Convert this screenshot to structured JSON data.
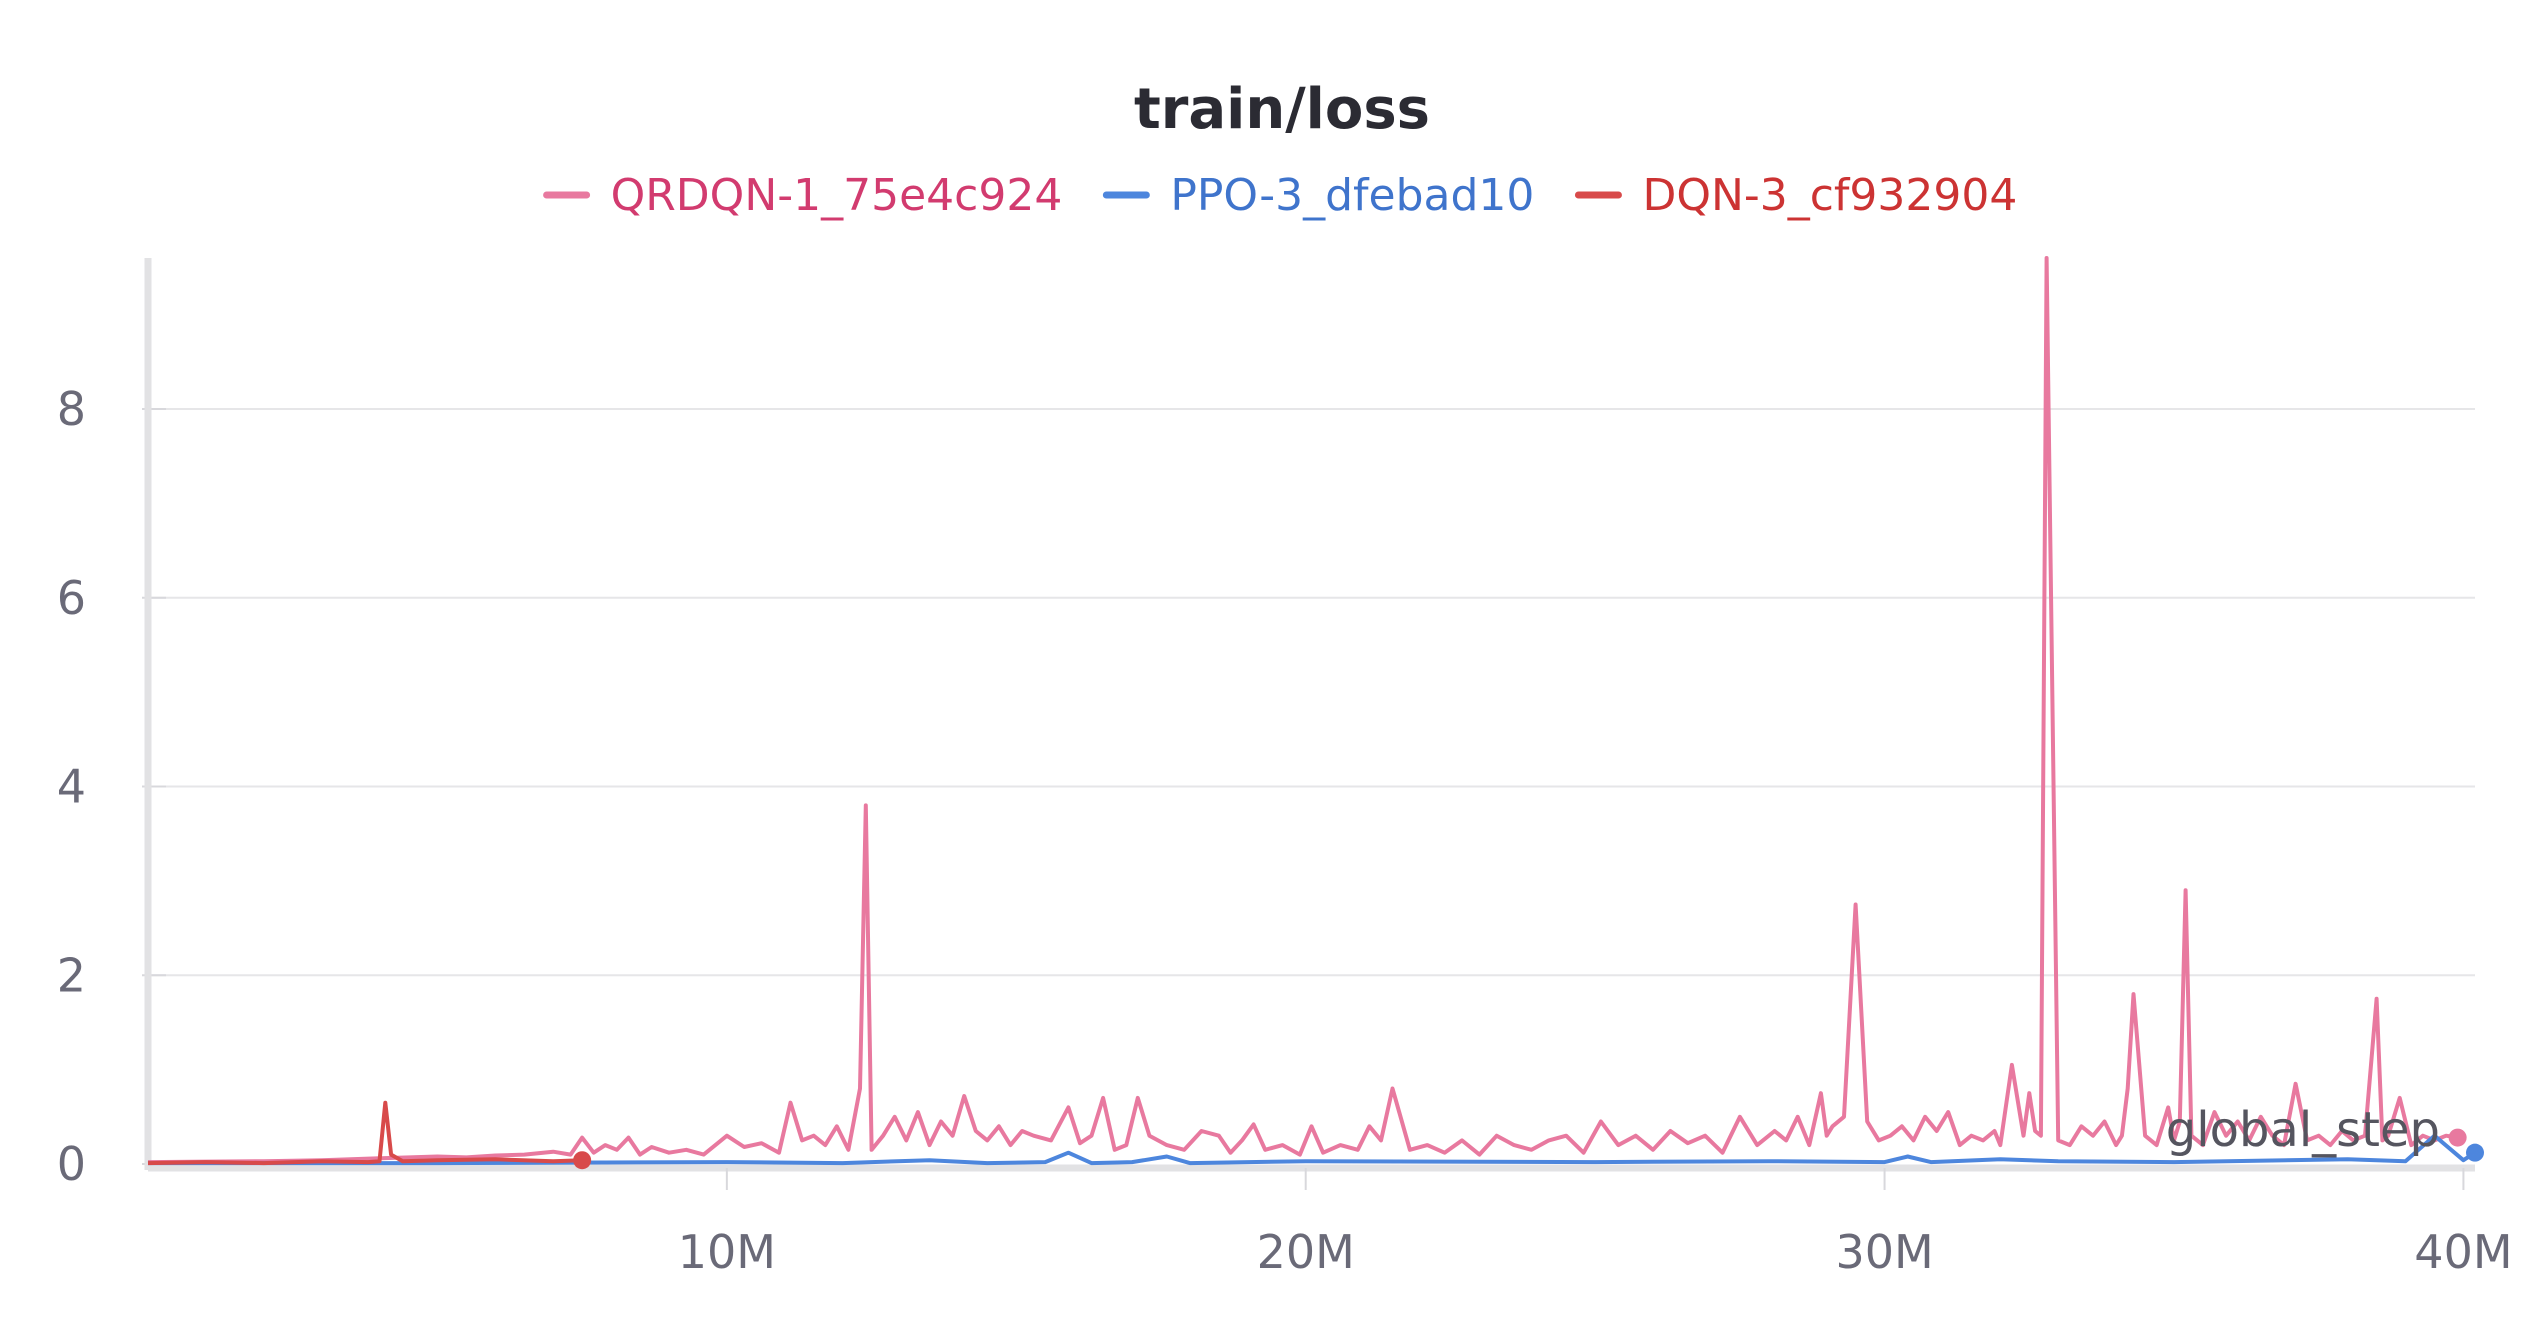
{
  "chart_data": {
    "type": "line",
    "title": "train/loss",
    "xlabel": "global_step",
    "ylabel": "",
    "xlim": [
      0,
      40200000
    ],
    "ylim": [
      0,
      9.6
    ],
    "x_ticks": [
      {
        "value": 10000000,
        "label": "10M"
      },
      {
        "value": 20000000,
        "label": "20M"
      },
      {
        "value": 30000000,
        "label": "30M"
      },
      {
        "value": 40000000,
        "label": "40M"
      }
    ],
    "y_ticks": [
      {
        "value": 0,
        "label": "0"
      },
      {
        "value": 2,
        "label": "2"
      },
      {
        "value": 4,
        "label": "4"
      },
      {
        "value": 6,
        "label": "6"
      },
      {
        "value": 8,
        "label": "8"
      }
    ],
    "grid": true,
    "legend_position": "top-center",
    "series": [
      {
        "name": "QRDQN-1_75e4c924",
        "color": "#e8799f",
        "label_color": "#d23b6f",
        "x": [
          0,
          2000000,
          3000000,
          4000000,
          5000000,
          5500000,
          6000000,
          6500000,
          7000000,
          7300000,
          7500000,
          7700000,
          7900000,
          8100000,
          8300000,
          8500000,
          8700000,
          9000000,
          9300000,
          9600000,
          10000000,
          10300000,
          10600000,
          10900000,
          11100000,
          11300000,
          11500000,
          11700000,
          11900000,
          12100000,
          12300000,
          12400000,
          12500000,
          12700000,
          12900000,
          13100000,
          13300000,
          13500000,
          13700000,
          13900000,
          14100000,
          14300000,
          14500000,
          14700000,
          14900000,
          15100000,
          15300000,
          15600000,
          15900000,
          16100000,
          16300000,
          16500000,
          16700000,
          16900000,
          17100000,
          17300000,
          17600000,
          17900000,
          18200000,
          18500000,
          18700000,
          18900000,
          19100000,
          19300000,
          19600000,
          19900000,
          20100000,
          20300000,
          20600000,
          20900000,
          21100000,
          21300000,
          21500000,
          21800000,
          22100000,
          22400000,
          22700000,
          23000000,
          23300000,
          23600000,
          23900000,
          24200000,
          24500000,
          24800000,
          25100000,
          25400000,
          25700000,
          26000000,
          26300000,
          26600000,
          26900000,
          27200000,
          27500000,
          27800000,
          28100000,
          28300000,
          28500000,
          28700000,
          28900000,
          29000000,
          29100000,
          29300000,
          29500000,
          29700000,
          29900000,
          30100000,
          30300000,
          30500000,
          30700000,
          30900000,
          31100000,
          31300000,
          31500000,
          31700000,
          31900000,
          32000000,
          32200000,
          32400000,
          32500000,
          32600000,
          32700000,
          32800000,
          33000000,
          33200000,
          33400000,
          33600000,
          33800000,
          34000000,
          34100000,
          34200000,
          34300000,
          34500000,
          34700000,
          34900000,
          35000000,
          35100000,
          35200000,
          35300000,
          35500000,
          35700000,
          35900000,
          36100000,
          36300000,
          36500000,
          36700000,
          36900000,
          37100000,
          37300000,
          37500000,
          37700000,
          37900000,
          38100000,
          38300000,
          38500000,
          38600000,
          38700000,
          38900000,
          39100000,
          39300000,
          39500000,
          39700000,
          39900000
        ],
        "values": [
          0.02,
          0.03,
          0.04,
          0.06,
          0.08,
          0.07,
          0.09,
          0.1,
          0.13,
          0.1,
          0.28,
          0.12,
          0.2,
          0.15,
          0.28,
          0.1,
          0.18,
          0.12,
          0.15,
          0.1,
          0.3,
          0.18,
          0.22,
          0.12,
          0.65,
          0.25,
          0.3,
          0.2,
          0.4,
          0.15,
          0.8,
          3.8,
          0.15,
          0.3,
          0.5,
          0.25,
          0.55,
          0.2,
          0.45,
          0.3,
          0.72,
          0.35,
          0.25,
          0.4,
          0.2,
          0.35,
          0.3,
          0.25,
          0.6,
          0.22,
          0.3,
          0.7,
          0.15,
          0.2,
          0.7,
          0.3,
          0.2,
          0.15,
          0.35,
          0.3,
          0.12,
          0.25,
          0.42,
          0.15,
          0.2,
          0.1,
          0.4,
          0.12,
          0.2,
          0.15,
          0.4,
          0.25,
          0.8,
          0.15,
          0.2,
          0.12,
          0.25,
          0.1,
          0.3,
          0.2,
          0.15,
          0.25,
          0.3,
          0.12,
          0.45,
          0.2,
          0.3,
          0.15,
          0.35,
          0.22,
          0.3,
          0.12,
          0.5,
          0.2,
          0.35,
          0.25,
          0.5,
          0.2,
          0.75,
          0.3,
          0.4,
          0.5,
          2.75,
          0.45,
          0.25,
          0.3,
          0.4,
          0.25,
          0.5,
          0.35,
          0.55,
          0.2,
          0.3,
          0.25,
          0.35,
          0.2,
          1.05,
          0.3,
          0.75,
          0.35,
          0.3,
          9.6,
          0.25,
          0.2,
          0.4,
          0.3,
          0.45,
          0.2,
          0.3,
          0.8,
          1.8,
          0.3,
          0.2,
          0.6,
          0.25,
          0.45,
          2.9,
          0.3,
          0.2,
          0.55,
          0.3,
          0.45,
          0.25,
          0.5,
          0.3,
          0.2,
          0.85,
          0.25,
          0.3,
          0.2,
          0.35,
          0.25,
          0.3,
          1.75,
          0.25,
          0.3,
          0.7,
          0.2,
          0.3,
          0.25,
          0.3,
          0.28
        ],
        "end_marker": true
      },
      {
        "name": "PPO-3_dfebad10",
        "color": "#4d86dd",
        "label_color": "#3f74cc",
        "x": [
          0,
          5000000,
          10000000,
          12000000,
          13500000,
          14500000,
          15500000,
          15900000,
          16300000,
          17000000,
          17600000,
          18000000,
          20000000,
          25000000,
          28000000,
          30000000,
          30400000,
          30800000,
          32000000,
          33000000,
          35000000,
          38000000,
          39000000,
          39500000,
          40000000,
          40200000
        ],
        "values": [
          0.01,
          0.01,
          0.02,
          0.01,
          0.04,
          0.01,
          0.02,
          0.12,
          0.01,
          0.02,
          0.08,
          0.01,
          0.03,
          0.02,
          0.03,
          0.02,
          0.08,
          0.02,
          0.05,
          0.03,
          0.02,
          0.05,
          0.03,
          0.3,
          0.04,
          0.12
        ],
        "end_marker": true
      },
      {
        "name": "DQN-3_cf932904",
        "color": "#d84a4a",
        "label_color": "#cc3333",
        "x": [
          0,
          1000000,
          2000000,
          3000000,
          3800000,
          4000000,
          4100000,
          4200000,
          4400000,
          5000000,
          6000000,
          7000000,
          7500000
        ],
        "values": [
          0.01,
          0.02,
          0.01,
          0.03,
          0.02,
          0.03,
          0.65,
          0.1,
          0.03,
          0.04,
          0.05,
          0.03,
          0.04
        ],
        "end_marker": true
      }
    ]
  }
}
